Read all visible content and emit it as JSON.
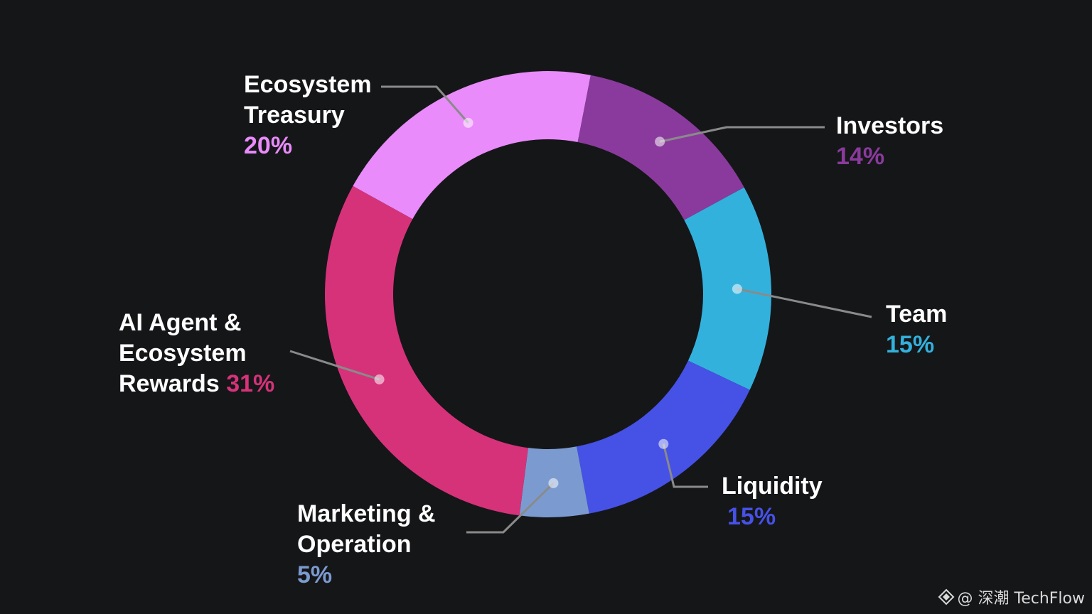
{
  "chart_data": {
    "type": "pie",
    "donut": true,
    "categories": [
      "Ecosystem Treasury",
      "Investors",
      "Team",
      "Liquidity",
      "Marketing & Operation",
      "AI Agent & Ecosystem Rewards"
    ],
    "values": [
      20,
      14,
      15,
      15,
      5,
      31
    ],
    "unit": "%",
    "colors": [
      "#E98BFA",
      "#8A3A9D",
      "#33B1DD",
      "#4651E6",
      "#7B9BD0",
      "#D6327A"
    ],
    "labels": [
      {
        "lines": [
          "Ecosystem",
          "Treasury"
        ],
        "pct": "20%"
      },
      {
        "lines": [
          "Investors"
        ],
        "pct": "14%"
      },
      {
        "lines": [
          "Team"
        ],
        "pct": "15%"
      },
      {
        "lines": [
          "Liquidity"
        ],
        "pct": "15%"
      },
      {
        "lines": [
          "Marketing &",
          "Operation"
        ],
        "pct": "5%"
      },
      {
        "lines": [
          "AI Agent &",
          "Ecosystem",
          "Rewards"
        ],
        "pct": "31%"
      }
    ]
  },
  "watermark": {
    "text": "@ 深潮 TechFlow",
    "icon": "diamond-logo-icon"
  }
}
